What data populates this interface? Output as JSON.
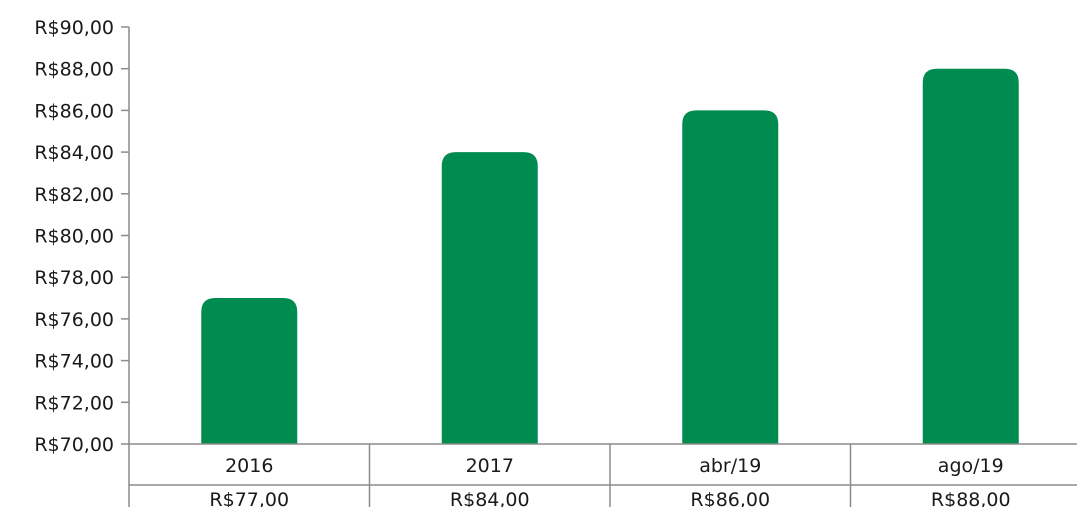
{
  "chart_data": {
    "type": "bar",
    "categories": [
      "2016",
      "2017",
      "abr/19",
      "ago/19"
    ],
    "values": [
      77,
      84,
      86,
      88
    ],
    "value_labels": [
      "R$77,00",
      "R$84,00",
      "R$86,00",
      "R$88,00"
    ],
    "ylim": [
      70,
      90
    ],
    "yticks": [
      70,
      72,
      74,
      76,
      78,
      80,
      82,
      84,
      86,
      88,
      90
    ],
    "ytick_labels": [
      "R$70,00",
      "R$72,00",
      "R$74,00",
      "R$76,00",
      "R$78,00",
      "R$80,00",
      "R$82,00",
      "R$84,00",
      "R$86,00",
      "R$88,00",
      "R$90,00"
    ],
    "bar_color": "#008C50",
    "axis_color": "#8c8c8c",
    "grid": false,
    "legend": "none",
    "data_table": true
  }
}
